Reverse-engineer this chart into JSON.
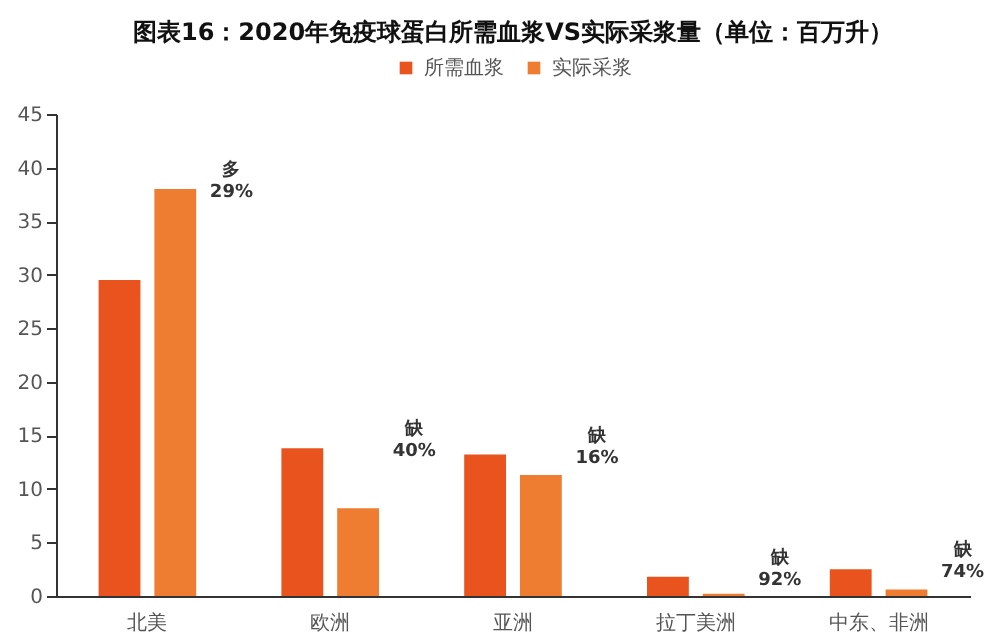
{
  "chart_data": {
    "type": "bar",
    "title": "图表16：2020年免疫球蛋白所需血浆VS实际采浆量（单位：百万升）",
    "categories": [
      "北美",
      "欧洲",
      "亚洲",
      "拉丁美洲",
      "中东、非洲"
    ],
    "series": [
      {
        "name": "所需血浆",
        "color": "#e8531e",
        "values": [
          29.5,
          13.8,
          13.2,
          1.8,
          2.5
        ]
      },
      {
        "name": "实际采浆",
        "color": "#ee7d31",
        "values": [
          38,
          8.2,
          11.3,
          0.2,
          0.6
        ]
      }
    ],
    "ylim": [
      0,
      45
    ],
    "yticks": [
      0,
      5,
      10,
      15,
      20,
      25,
      30,
      35,
      40,
      45
    ],
    "grid": false,
    "legend": "top",
    "annotations": [
      "多 29%",
      "缺 40%",
      "缺 16%",
      "缺 92%",
      "缺 74%"
    ]
  }
}
